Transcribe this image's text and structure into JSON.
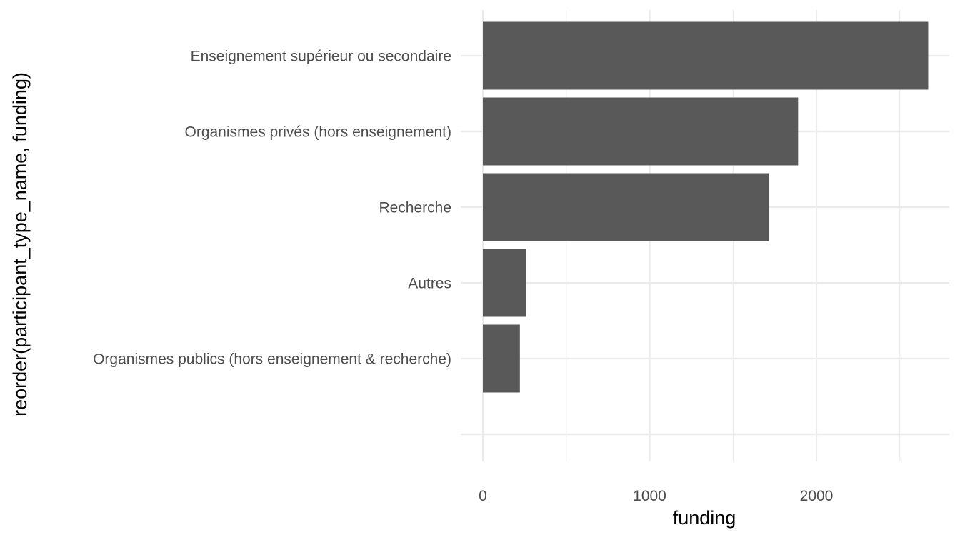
{
  "chart_data": {
    "type": "bar",
    "orientation": "horizontal",
    "categories": [
      "Enseignement supérieur ou secondaire",
      "Organismes privés (hors enseignement)",
      "Recherche",
      "Autres",
      "Organismes publics (hors enseignement & recherche)"
    ],
    "values": [
      2670,
      1890,
      1715,
      258,
      222
    ],
    "xlabel": "funding",
    "ylabel": "reorder(participant_type_name, funding)",
    "xticks": [
      0,
      1000,
      2000
    ],
    "xlim": [
      -130,
      2800
    ],
    "grid": true,
    "colors": {
      "bar": "#595959",
      "grid": "#ebebeb",
      "background": "#ffffff"
    }
  }
}
